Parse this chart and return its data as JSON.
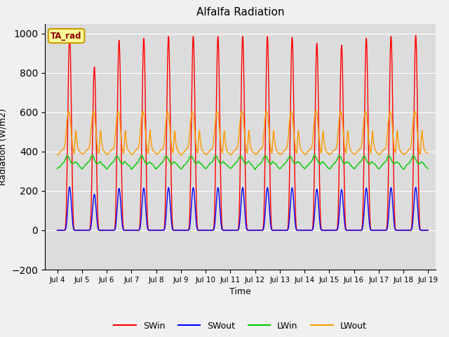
{
  "title": "Alfalfa Radiation",
  "xlabel": "Time",
  "ylabel": "Radiation (W/m2)",
  "ylim": [
    -200,
    1050
  ],
  "xlim": [
    3.5,
    19.3
  ],
  "yticks": [
    -200,
    0,
    200,
    400,
    600,
    800,
    1000
  ],
  "xtick_labels": [
    "Jul 4",
    "Jul 5",
    "Jul 6",
    "Jul 7",
    "Jul 8",
    "Jul 9",
    "Jul 10",
    "Jul 11",
    "Jul 12",
    "Jul 13",
    "Jul 14",
    "Jul 15",
    "Jul 16",
    "Jul 17",
    "Jul 18",
    "Jul 19"
  ],
  "xtick_positions": [
    4,
    5,
    6,
    7,
    8,
    9,
    10,
    11,
    12,
    13,
    14,
    15,
    16,
    17,
    18,
    19
  ],
  "colors": {
    "SWin": "#ff0000",
    "SWout": "#0000ff",
    "LWin": "#00cc00",
    "LWout": "#ff9900"
  },
  "annotation_text": "TA_rad",
  "annotation_bg": "#ffff99",
  "annotation_border": "#cc9900",
  "plot_bg": "#dcdcdc",
  "fig_bg": "#f0f0f0",
  "grid_color": "#ffffff",
  "days_start": 4,
  "days_end": 19,
  "n_points_per_day": 144,
  "SWin_peaks": [
    1000,
    830,
    965,
    975,
    985,
    985,
    985,
    985,
    985,
    980,
    950,
    940,
    975,
    985,
    990
  ],
  "sw_ratio": 0.22,
  "LWin_base": 310,
  "LWout_base": 380
}
